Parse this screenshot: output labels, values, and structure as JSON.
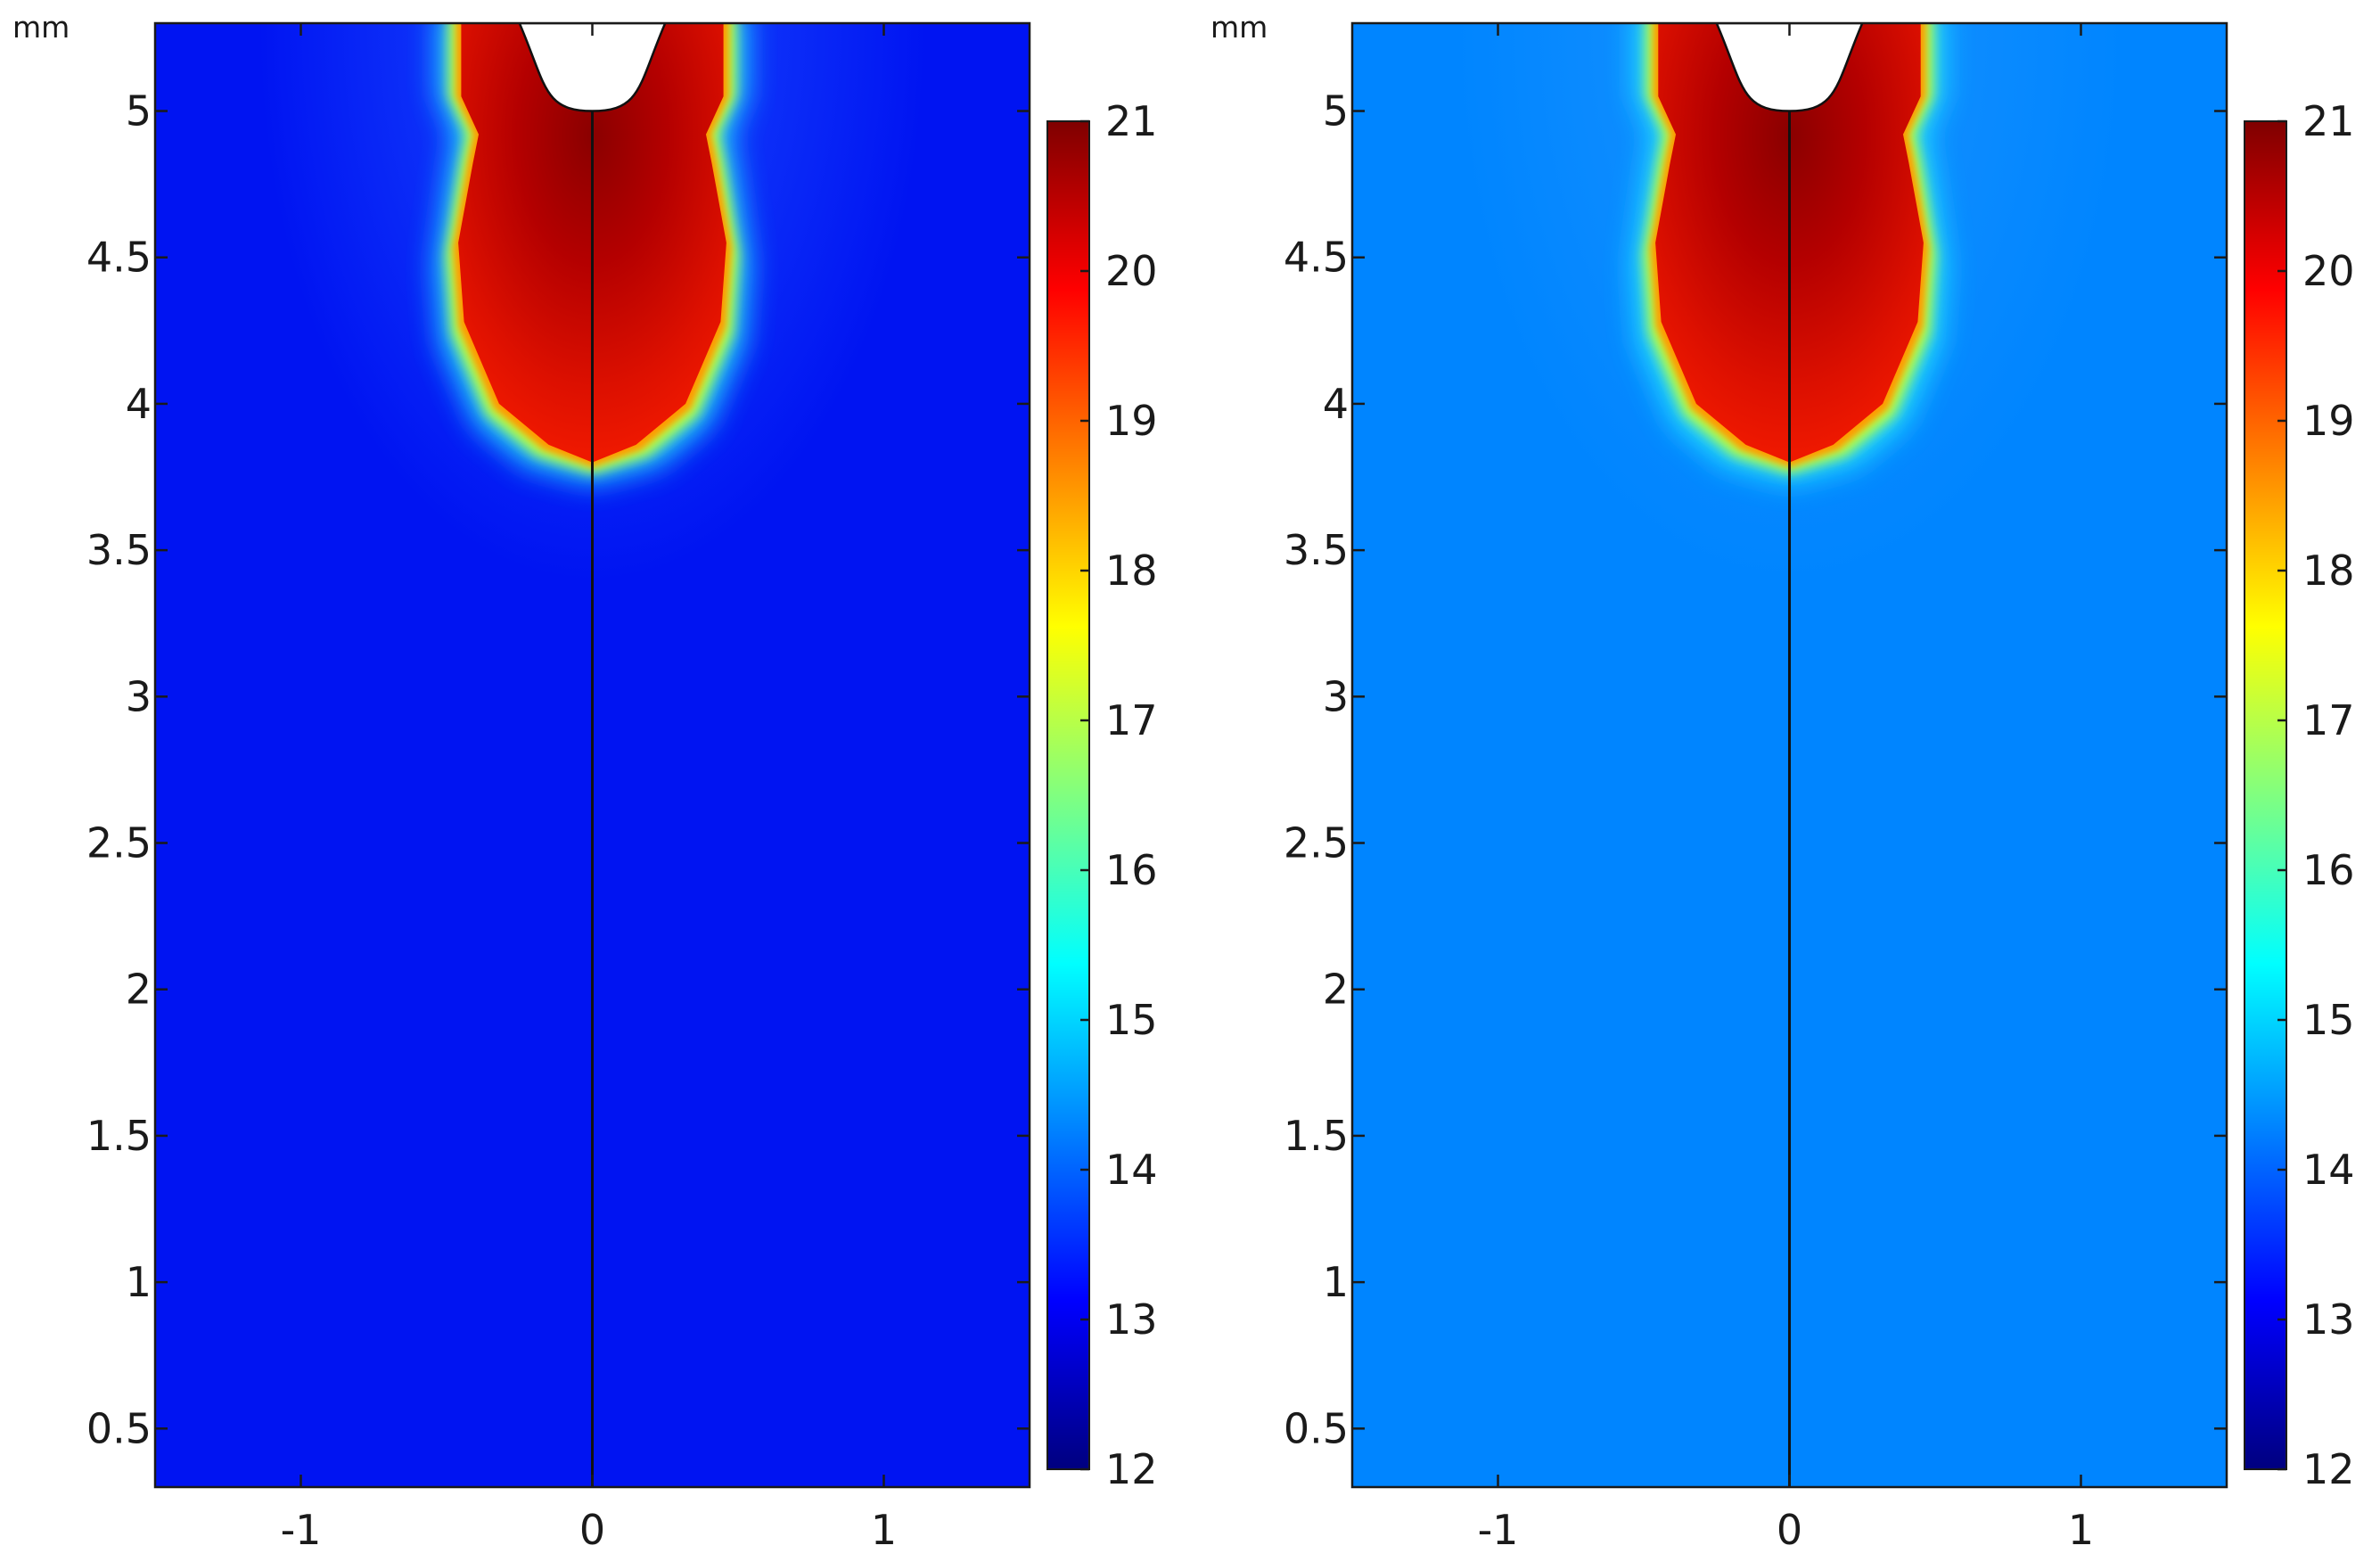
{
  "chart_data": [
    {
      "type": "heatmap",
      "unit_label": "mm",
      "x_ticks": [
        "-1",
        "0",
        "1"
      ],
      "y_ticks": [
        "0.5",
        "1",
        "1.5",
        "2",
        "2.5",
        "3",
        "3.5",
        "4",
        "4.5",
        "5"
      ],
      "xlim": [
        -1.5,
        1.5
      ],
      "ylim": [
        0.3,
        5.3
      ],
      "background_value": 13.1,
      "background_color": "#0014f2",
      "colorbar": {
        "min": 12,
        "max": 21,
        "ticks": [
          "12",
          "13",
          "14",
          "15",
          "16",
          "17",
          "18",
          "19",
          "20",
          "21"
        ]
      },
      "hot_region": {
        "value_peak": 21,
        "value_body": 20.2,
        "y_range": [
          3.8,
          5.3
        ],
        "half_width_max": 0.47
      },
      "notch": {
        "tip": [
          0,
          5.0
        ],
        "top_half_width": 0.25
      },
      "centerline_x": 0
    },
    {
      "type": "heatmap",
      "unit_label": "mm",
      "x_ticks": [
        "-1",
        "0",
        "1"
      ],
      "y_ticks": [
        "0.5",
        "1",
        "1.5",
        "2",
        "2.5",
        "3",
        "3.5",
        "4",
        "4.5",
        "5"
      ],
      "xlim": [
        -1.5,
        1.5
      ],
      "ylim": [
        0.3,
        5.3
      ],
      "background_value": 14.2,
      "background_color": "#0085ff",
      "colorbar": {
        "min": 12,
        "max": 21,
        "ticks": [
          "12",
          "13",
          "14",
          "15",
          "16",
          "17",
          "18",
          "19",
          "20",
          "21"
        ]
      },
      "hot_region": {
        "value_peak": 21,
        "value_body": 20.2,
        "y_range": [
          3.8,
          5.3
        ],
        "half_width_max": 0.47
      },
      "notch": {
        "tip": [
          0,
          5.0
        ],
        "top_half_width": 0.25
      },
      "centerline_x": 0
    }
  ],
  "colormap": [
    "#00007f",
    "#0000ff",
    "#0080ff",
    "#00ffff",
    "#80ff80",
    "#ffff00",
    "#ff8000",
    "#ff0000",
    "#7f0000"
  ]
}
